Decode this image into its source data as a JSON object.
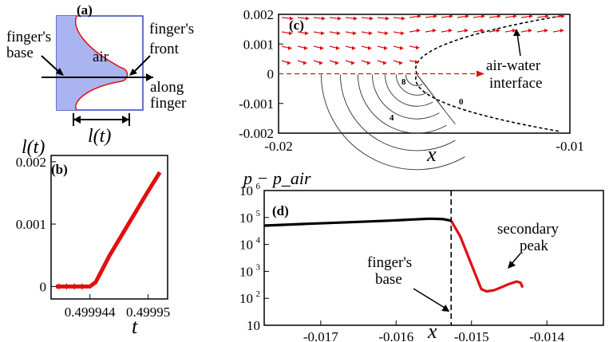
{
  "panels": {
    "a": {
      "letter": "(a)",
      "labels": {
        "base_1": "finger's",
        "base_2": "base",
        "front_1": "finger's",
        "front_2": "front",
        "air": "air",
        "along_1": "along",
        "along_2": "finger",
        "length": "l(t)"
      }
    },
    "b": {
      "letter": "(b)"
    },
    "c": {
      "letter": "(c)",
      "interface_1": "air-water",
      "interface_2": "interface",
      "contour_labels": [
        "8",
        "4",
        "0"
      ]
    },
    "d": {
      "letter": "(d)",
      "secondary_1": "secondary",
      "secondary_2": "peak",
      "base_1": "finger's",
      "base_2": "base"
    }
  },
  "colors": {
    "red": "#e01010",
    "black": "#000000",
    "blue_fill": "#aab4f0",
    "blue_line": "#3040c0"
  },
  "chart_data": [
    {
      "id": "b",
      "type": "line",
      "ylabel": "l(t)",
      "xlabel": "t",
      "xlim": [
        0.49994,
        0.499952
      ],
      "ylim": [
        -0.0002,
        0.0021
      ],
      "xticks": [
        0.499944,
        0.49995
      ],
      "xtick_labels": [
        "0.499944",
        "0.49995"
      ],
      "yticks": [
        0,
        0.001,
        0.002
      ],
      "ytick_labels": [
        "0",
        "0.001",
        "0.002"
      ],
      "series": [
        {
          "x": [
            0.4999405,
            0.499942,
            0.4999435,
            0.499944,
            0.4999446,
            0.499946,
            0.499948,
            0.49995,
            0.4999512
          ],
          "y": [
            0,
            0,
            0,
            0,
            7e-05,
            0.00049,
            0.00101,
            0.00153,
            0.00183
          ]
        }
      ]
    },
    {
      "id": "c",
      "type": "line",
      "xlabel": "x",
      "xlim": [
        -0.02,
        -0.01
      ],
      "ylim": [
        -0.002,
        0.002
      ],
      "xticks": [
        -0.02,
        -0.01
      ],
      "xtick_labels": [
        "-0.02",
        "-0.01"
      ],
      "yticks": [
        0.002,
        0.001,
        0,
        -0.001,
        -0.002
      ],
      "ytick_labels": [
        "0.002",
        "0.001",
        "0",
        "-0.001",
        "-0.002"
      ],
      "interface_tip_x": -0.01525,
      "interface_end_x": -0.0103,
      "interface_end_y": 0.00195
    },
    {
      "id": "d",
      "type": "line",
      "ylabel": "p − p_air",
      "xlabel": "x",
      "log_y": true,
      "xlim": [
        -0.01775,
        -0.01325
      ],
      "ylim": [
        10,
        1000000
      ],
      "xticks": [
        -0.017,
        -0.016,
        -0.015,
        -0.014
      ],
      "xtick_labels": [
        "-0.017",
        "-0.016",
        "-0.015",
        "-0.014"
      ],
      "yticks": [
        10,
        100,
        1000,
        10000,
        100000,
        1000000
      ],
      "ytick_labels": [
        "10",
        "10^2",
        "10^3",
        "10^4",
        "10^5",
        "10^6"
      ],
      "base_x": -0.01527,
      "series": [
        {
          "name": "before base",
          "x": [
            -0.01775,
            -0.0172,
            -0.0166,
            -0.0161,
            -0.01575,
            -0.01555,
            -0.01538,
            -0.01527
          ],
          "y": [
            50000,
            58000,
            67000,
            76000,
            85000,
            90000,
            87000,
            76000
          ]
        },
        {
          "name": "after base",
          "x": [
            -0.01527,
            -0.01515,
            -0.01505,
            -0.01495,
            -0.01487,
            -0.0148,
            -0.0147,
            -0.0146,
            -0.0145,
            -0.0144,
            -0.01435,
            -0.01432
          ],
          "y": [
            76000,
            20000,
            4000,
            800,
            220,
            180,
            200,
            260,
            340,
            420,
            380,
            250
          ]
        }
      ]
    }
  ]
}
